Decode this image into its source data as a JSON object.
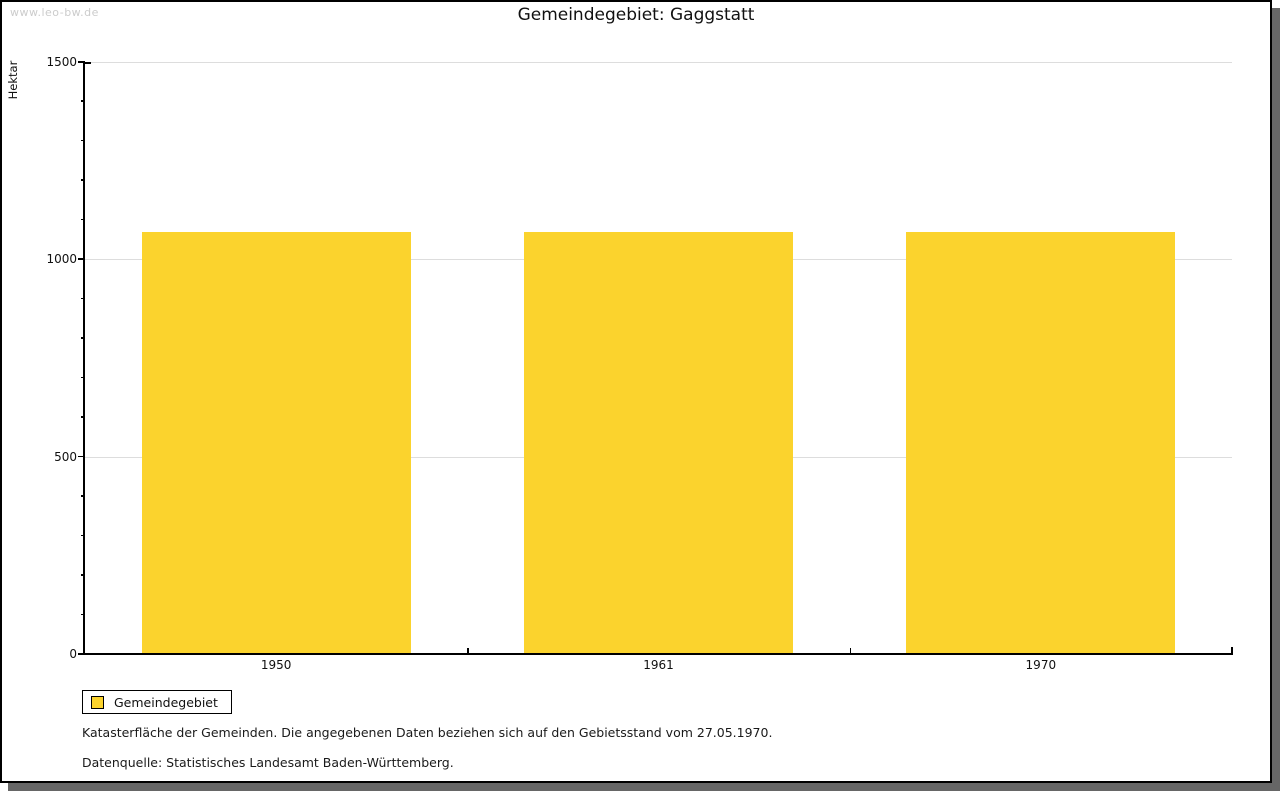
{
  "watermark": "www.leo-bw.de",
  "title": "Gemeindegebiet: Gaggstatt",
  "legend": {
    "label": "Gemeindegebiet"
  },
  "footer": {
    "line1": "Katasterfläche der Gemeinden. Die angegebenen Daten beziehen sich auf den Gebietsstand vom 27.05.1970.",
    "line2": "Datenquelle: Statistisches Landesamt Baden-Württemberg."
  },
  "colors": {
    "bar": "#FBD32D",
    "axis": "#000000",
    "gridline": "#DDDDDD",
    "watermark": "#CCCCCC",
    "frame_shadow": "#666666"
  },
  "chart_data": {
    "type": "bar",
    "title": "Gemeindegebiet: Gaggstatt",
    "categories": [
      "1950",
      "1961",
      "1970"
    ],
    "series": [
      {
        "name": "Gemeindegebiet",
        "values": [
          1068,
          1068,
          1068
        ]
      }
    ],
    "xlabel": "",
    "ylabel": "Hektar",
    "ylim": [
      0,
      1500
    ],
    "ytick_major": 500,
    "ytick_minor": 100,
    "grid": "horizontal-major",
    "legend_position": "bottom-left",
    "bar_color": "#FBD32D"
  }
}
